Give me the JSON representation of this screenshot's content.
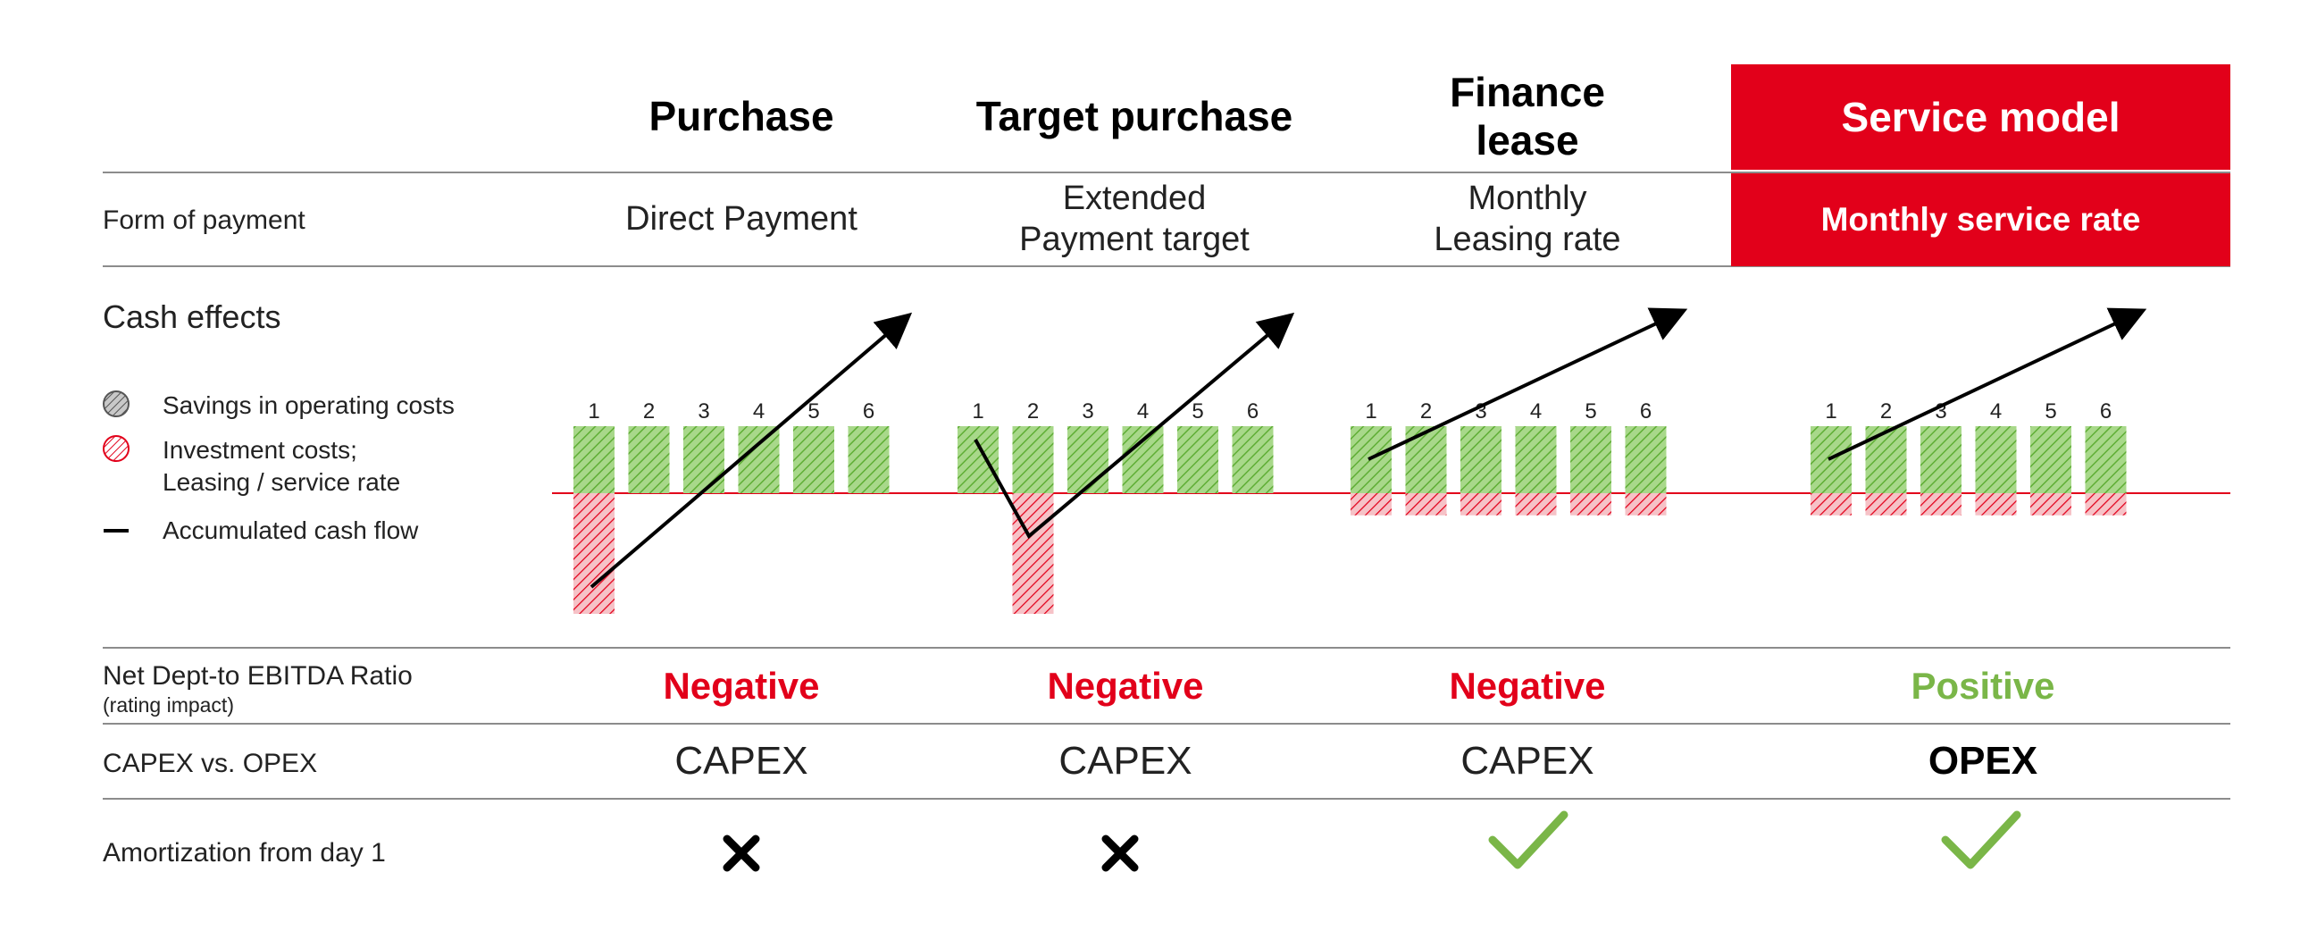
{
  "columns": [
    {
      "title": "Purchase",
      "payment": "Direct Payment",
      "rating": "Negative",
      "capex_opex": "CAPEX",
      "amortization": "cross-icon"
    },
    {
      "title": "Target purchase",
      "payment": "Extended\nPayment target",
      "rating": "Negative",
      "capex_opex": "CAPEX",
      "amortization": "cross-icon"
    },
    {
      "title": "Finance\nlease",
      "payment": "Monthly\nLeasing rate",
      "rating": "Negative",
      "capex_opex": "CAPEX",
      "amortization": "check-icon"
    },
    {
      "title": "Service model",
      "payment": "Monthly service rate",
      "rating": "Positive",
      "capex_opex": "OPEX",
      "amortization": "check-icon"
    }
  ],
  "rows": {
    "form_of_payment": "Form of payment",
    "cash_effects": "Cash effects",
    "net_debt": "Net Dept-to EBITDA Ratio",
    "net_debt_sub": "(rating impact)",
    "capex_vs_opex": "CAPEX vs. OPEX",
    "amortization": "Amortization from day 1"
  },
  "legend": {
    "savings": "Savings in operating costs",
    "investment_line1": "Investment costs;",
    "investment_line2": "Leasing / service rate",
    "accumulated": "Accumulated cash flow"
  },
  "period_labels": [
    "1",
    "2",
    "3",
    "4",
    "5",
    "6"
  ],
  "colors": {
    "accent_red": "#e2001a",
    "positive_green": "#7ab648",
    "savings_green": "#6cbf3e",
    "investment_red": "#e2001a"
  },
  "chart_data": [
    {
      "type": "bar",
      "name": "Purchase",
      "categories": [
        "1",
        "2",
        "3",
        "4",
        "5",
        "6"
      ],
      "savings": [
        1,
        1,
        1,
        1,
        1,
        1
      ],
      "costs": [
        -1.8,
        0,
        0,
        0,
        0,
        0
      ]
    },
    {
      "type": "bar",
      "name": "Target purchase",
      "categories": [
        "1",
        "2",
        "3",
        "4",
        "5",
        "6"
      ],
      "savings": [
        1,
        1,
        1,
        1,
        1,
        1
      ],
      "costs": [
        0,
        -1.8,
        0,
        0,
        0,
        0
      ]
    },
    {
      "type": "bar",
      "name": "Finance lease",
      "categories": [
        "1",
        "2",
        "3",
        "4",
        "5",
        "6"
      ],
      "savings": [
        1,
        1,
        1,
        1,
        1,
        1
      ],
      "costs": [
        -0.33,
        -0.33,
        -0.33,
        -0.33,
        -0.33,
        -0.33
      ]
    },
    {
      "type": "bar",
      "name": "Service model",
      "categories": [
        "1",
        "2",
        "3",
        "4",
        "5",
        "6"
      ],
      "savings": [
        1,
        1,
        1,
        1,
        1,
        1
      ],
      "costs": [
        -0.33,
        -0.33,
        -0.33,
        -0.33,
        -0.33,
        -0.33
      ]
    }
  ]
}
